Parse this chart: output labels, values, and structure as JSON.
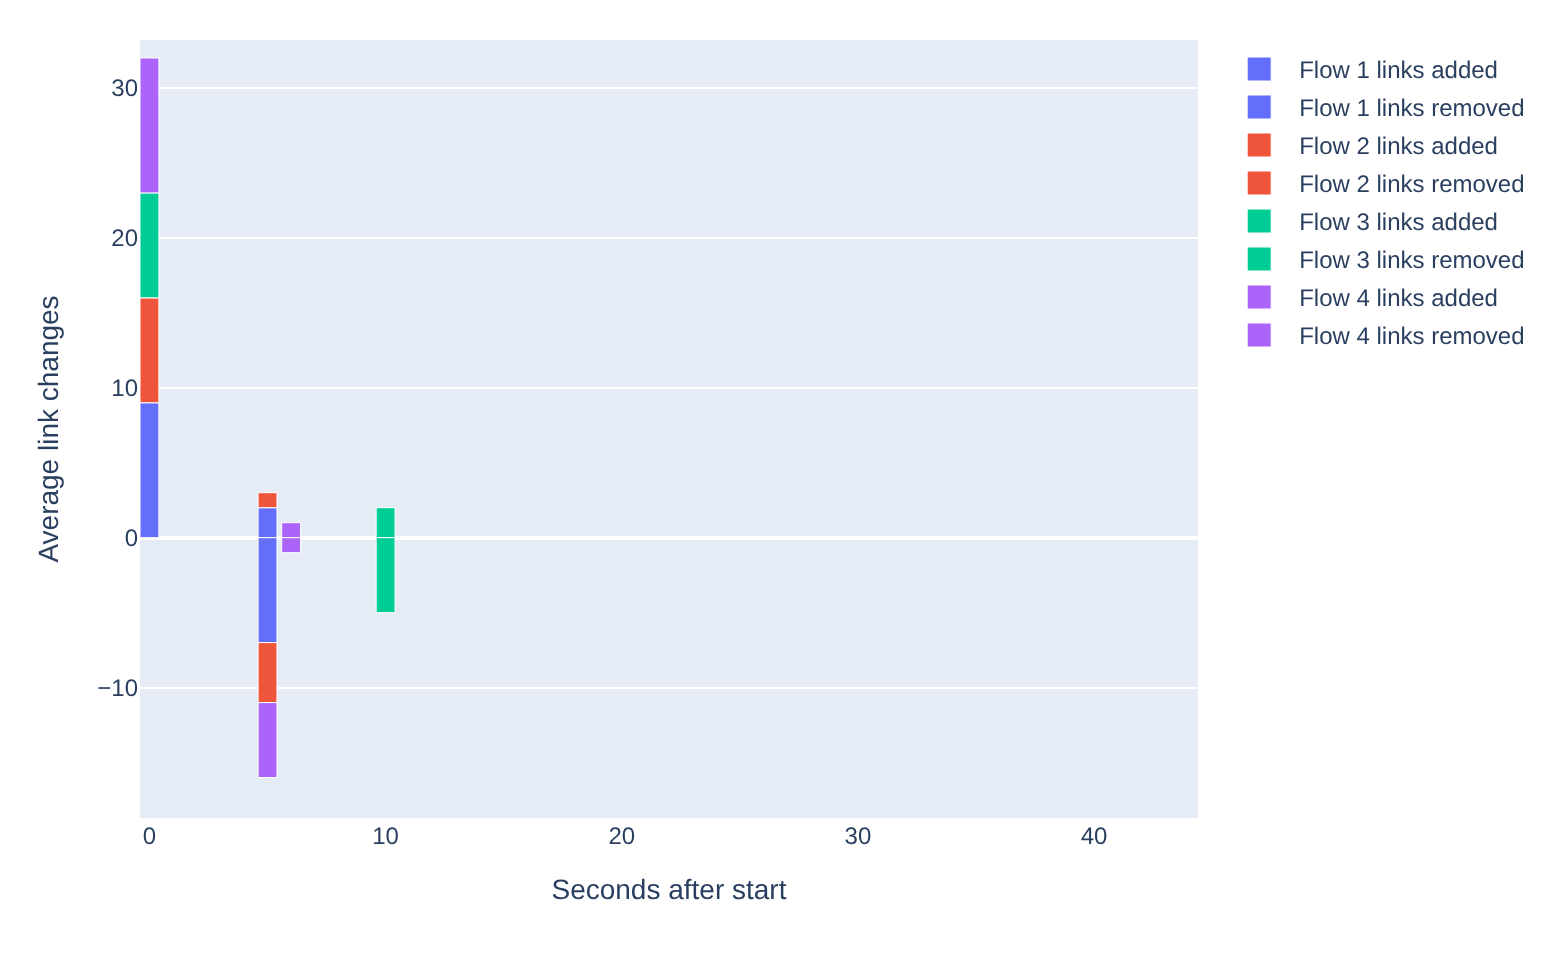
{
  "chart_data": {
    "type": "bar",
    "stacked": true,
    "xlabel": "Seconds after start",
    "ylabel": "Average link changes",
    "x": [
      0,
      5,
      6,
      10
    ],
    "series": [
      {
        "name": "Flow 1 links added",
        "color": "#636efa",
        "values": [
          9,
          2,
          null,
          null
        ]
      },
      {
        "name": "Flow 1 links removed",
        "color": "#636efa",
        "values": [
          null,
          -7,
          null,
          null
        ]
      },
      {
        "name": "Flow 2 links added",
        "color": "#ef553b",
        "values": [
          7,
          1,
          null,
          null
        ]
      },
      {
        "name": "Flow 2 links removed",
        "color": "#ef553b",
        "values": [
          null,
          -4,
          null,
          null
        ]
      },
      {
        "name": "Flow 3 links added",
        "color": "#00cc96",
        "values": [
          7,
          null,
          null,
          2
        ]
      },
      {
        "name": "Flow 3 links removed",
        "color": "#00cc96",
        "values": [
          null,
          null,
          null,
          -5
        ]
      },
      {
        "name": "Flow 4 links added",
        "color": "#ab63fa",
        "values": [
          9,
          null,
          1,
          null
        ]
      },
      {
        "name": "Flow 4 links removed",
        "color": "#ab63fa",
        "values": [
          null,
          -5,
          -1,
          null
        ]
      }
    ],
    "xlim": [
      -0.4,
      44.4
    ],
    "xticks": [
      0,
      10,
      20,
      30,
      40
    ],
    "ylim": [
      -18.7,
      33.2
    ],
    "yticks": [
      -10,
      0,
      10,
      20,
      30
    ],
    "grid": "y",
    "legend": "top right"
  }
}
